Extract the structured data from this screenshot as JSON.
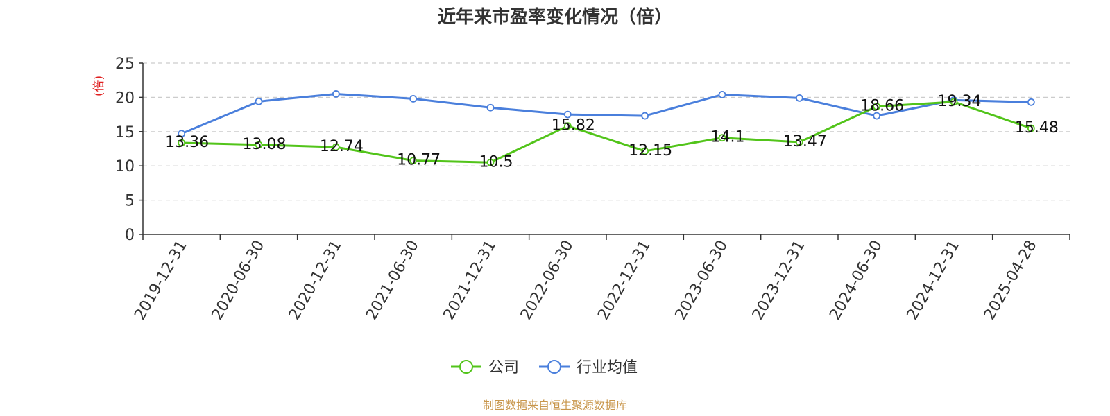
{
  "chart_data": {
    "type": "line",
    "title": "近年来市盈率变化情况（倍）",
    "ylabel": "(倍)",
    "xlabel": "",
    "categories": [
      "2019-12-31",
      "2020-06-30",
      "2020-12-31",
      "2021-06-30",
      "2021-12-31",
      "2022-06-30",
      "2022-12-31",
      "2023-06-30",
      "2023-12-31",
      "2024-06-30",
      "2024-12-31",
      "2025-04-28"
    ],
    "ylim": [
      0,
      25
    ],
    "yticks": [
      0,
      5,
      10,
      15,
      20,
      25
    ],
    "grid": true,
    "legend_position": "bottom-center",
    "series": [
      {
        "name": "公司",
        "color": "#52c41a",
        "values": [
          13.36,
          13.08,
          12.74,
          10.77,
          10.5,
          15.82,
          12.15,
          14.1,
          13.47,
          18.66,
          19.34,
          15.48
        ],
        "labels": [
          "13.36",
          "13.08",
          "12.74",
          "10.77",
          "10.5",
          "15.82",
          "12.15",
          "14.1",
          "13.47",
          "18.66",
          "19.34",
          "15.48"
        ]
      },
      {
        "name": "行业均值",
        "color": "#4a7fdc",
        "values": [
          14.7,
          19.4,
          20.5,
          19.8,
          18.5,
          17.5,
          17.3,
          20.4,
          19.9,
          17.3,
          19.6,
          19.3
        ]
      }
    ]
  },
  "footer": {
    "source": "制图数据来自恒生聚源数据库",
    "source_color": "#c8964b"
  },
  "colors": {
    "axis": "#333333",
    "grid": "#cccccc",
    "unit_label": "#e02020"
  }
}
